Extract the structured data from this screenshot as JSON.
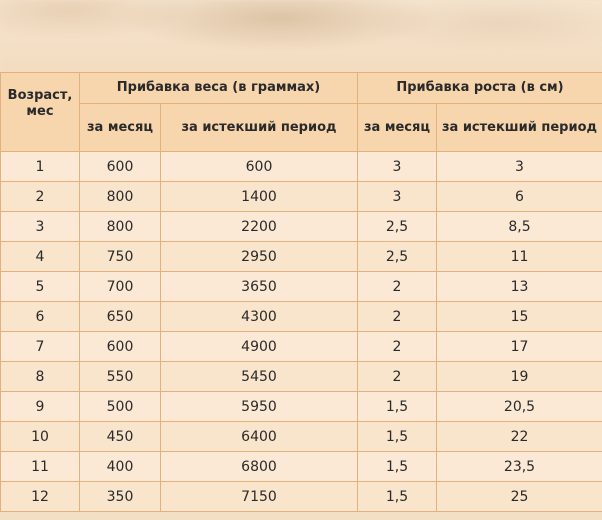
{
  "table": {
    "age_header": "Возраст, мес",
    "weight_group_header": "Прибавка веса (в граммах)",
    "height_group_header": "Прибавка роста (в см)",
    "sub_headers": [
      "за месяц",
      "за истекший период",
      "за месяц",
      "за истекший период"
    ],
    "rows": [
      [
        "1",
        "600",
        "600",
        "3",
        "3"
      ],
      [
        "2",
        "800",
        "1400",
        "3",
        "6"
      ],
      [
        "3",
        "800",
        "2200",
        "2,5",
        "8,5"
      ],
      [
        "4",
        "750",
        "2950",
        "2,5",
        "11"
      ],
      [
        "5",
        "700",
        "3650",
        "2",
        "13"
      ],
      [
        "6",
        "650",
        "4300",
        "2",
        "15"
      ],
      [
        "7",
        "600",
        "4900",
        "2",
        "17"
      ],
      [
        "8",
        "550",
        "5450",
        "2",
        "19"
      ],
      [
        "9",
        "500",
        "5950",
        "1,5",
        "20,5"
      ],
      [
        "10",
        "450",
        "6400",
        "1,5",
        "22"
      ],
      [
        "11",
        "400",
        "6800",
        "1,5",
        "23,5"
      ],
      [
        "12",
        "350",
        "7150",
        "1,5",
        "25"
      ]
    ]
  }
}
